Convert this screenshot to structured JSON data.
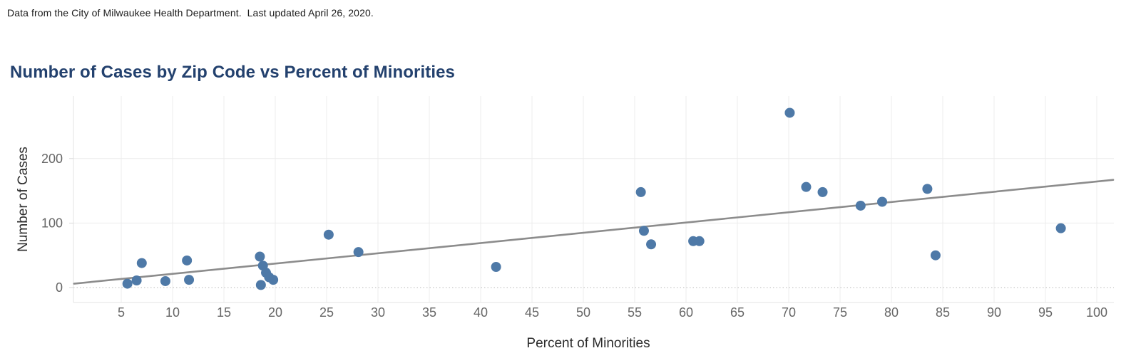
{
  "header": {
    "note": "Data from the City of Milwaukee Health Department.  Last updated April 26, 2020."
  },
  "chart": {
    "title": "Number of Cases by Zip Code vs Percent of Minorities"
  },
  "chart_data": {
    "type": "scatter",
    "title": "Number of Cases by Zip Code vs Percent of Minorities",
    "xlabel": "Percent of Minorities",
    "ylabel": "Number of Cases",
    "xlim": [
      0,
      101.5
    ],
    "ylim": [
      -23,
      297
    ],
    "x_ticks": [
      5,
      10,
      15,
      20,
      25,
      30,
      35,
      40,
      45,
      50,
      55,
      60,
      65,
      70,
      75,
      80,
      85,
      90,
      95,
      100
    ],
    "y_ticks": [
      0,
      100,
      200
    ],
    "grid": true,
    "legend": "none",
    "points": [
      {
        "x": 5.6,
        "y": 6
      },
      {
        "x": 6.5,
        "y": 11
      },
      {
        "x": 7.0,
        "y": 38
      },
      {
        "x": 9.3,
        "y": 10
      },
      {
        "x": 11.4,
        "y": 42
      },
      {
        "x": 11.6,
        "y": 12
      },
      {
        "x": 18.5,
        "y": 48
      },
      {
        "x": 18.6,
        "y": 4
      },
      {
        "x": 18.8,
        "y": 34
      },
      {
        "x": 19.1,
        "y": 23
      },
      {
        "x": 19.4,
        "y": 16
      },
      {
        "x": 19.8,
        "y": 12
      },
      {
        "x": 25.2,
        "y": 82
      },
      {
        "x": 28.1,
        "y": 55
      },
      {
        "x": 41.5,
        "y": 32
      },
      {
        "x": 55.6,
        "y": 148
      },
      {
        "x": 55.9,
        "y": 88
      },
      {
        "x": 56.6,
        "y": 67
      },
      {
        "x": 60.7,
        "y": 72
      },
      {
        "x": 61.3,
        "y": 72
      },
      {
        "x": 70.1,
        "y": 271
      },
      {
        "x": 71.7,
        "y": 156
      },
      {
        "x": 73.3,
        "y": 148
      },
      {
        "x": 77.0,
        "y": 127
      },
      {
        "x": 79.1,
        "y": 133
      },
      {
        "x": 83.5,
        "y": 153
      },
      {
        "x": 84.3,
        "y": 50
      },
      {
        "x": 96.5,
        "y": 92
      }
    ],
    "trend_line": {
      "x1": 0.4,
      "y1": 6,
      "x2": 101.6,
      "y2": 167
    },
    "colors": {
      "point": "#4e79a7",
      "trend": "#8c8c8c",
      "title": "#23416e",
      "tick_label": "#666666",
      "axis_label": "#2b2b2b",
      "gridline": "#ececec",
      "axis_line": "#e3e3e3",
      "zero_line": "#b9b9b9",
      "background": "#ffffff"
    }
  }
}
